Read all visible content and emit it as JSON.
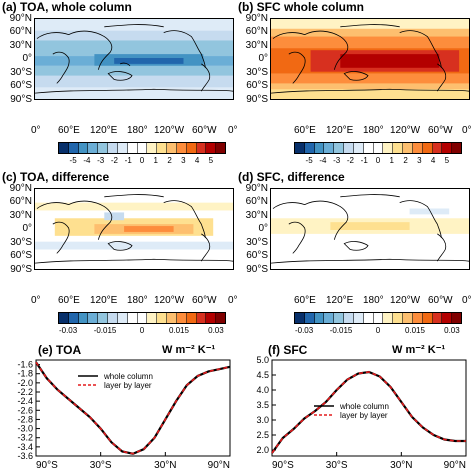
{
  "panels": {
    "a": {
      "title": "(a) TOA, whole column"
    },
    "b": {
      "title": "(b) SFC whole column"
    },
    "c": {
      "title": "(c) TOA, difference"
    },
    "d": {
      "title": "(d) SFC, difference"
    },
    "e": {
      "title": "(e) TOA"
    },
    "f": {
      "title": "(f) SFC"
    }
  },
  "map_axes": {
    "lat_labels": [
      "90°N",
      "60°N",
      "30°N",
      "0°",
      "30°S",
      "60°S",
      "90°S"
    ],
    "lon_labels": [
      "0°",
      "60°E",
      "120°E",
      "180°",
      "120°W",
      "60°W",
      "0°"
    ]
  },
  "colorbar_top": {
    "ticks": [
      "-5",
      "-4",
      "-3",
      "-2",
      "-1",
      "0",
      "1",
      "2",
      "3",
      "4",
      "5"
    ],
    "colors": [
      "#08306b",
      "#2166ac",
      "#4393c3",
      "#6baed6",
      "#92c5de",
      "#c6dbef",
      "#deebf7",
      "#ffffff",
      "#ffffff",
      "#fff3c4",
      "#fee090",
      "#fdbf6f",
      "#fd8d3c",
      "#f16913",
      "#d7301f",
      "#b30000",
      "#800000"
    ]
  },
  "colorbar_bottom": {
    "ticks": [
      "-0.03",
      "-0.015",
      "0",
      "0.015",
      "0.03"
    ],
    "colors": [
      "#08306b",
      "#2166ac",
      "#4393c3",
      "#6baed6",
      "#92c5de",
      "#c6dbef",
      "#deebf7",
      "#ffffff",
      "#ffffff",
      "#fff3c4",
      "#fee090",
      "#fdbf6f",
      "#fd8d3c",
      "#f16913",
      "#d7301f",
      "#b30000",
      "#800000"
    ]
  },
  "units": "W m⁻² K⁻¹",
  "line_x_labels": [
    "90°S",
    "30°S",
    "30°N",
    "90°N"
  ],
  "chart_data": [
    {
      "type": "line",
      "title": "(e) TOA",
      "x": [
        -90,
        -80,
        -70,
        -60,
        -50,
        -40,
        -30,
        -20,
        -10,
        0,
        10,
        20,
        30,
        40,
        50,
        60,
        70,
        80,
        90
      ],
      "xlim": [
        -90,
        90
      ],
      "ylim": [
        -3.6,
        -1.5
      ],
      "yticks": [
        "-1.6",
        "-1.8",
        "-2.0",
        "-2.2",
        "-2.4",
        "-2.6",
        "-2.8",
        "-3.0",
        "-3.2",
        "-3.4",
        "-3.6"
      ],
      "ytick_values": [
        -1.6,
        -1.8,
        -2.0,
        -2.2,
        -2.4,
        -2.6,
        -2.8,
        -3.0,
        -3.2,
        -3.4,
        -3.6
      ],
      "legend_position": "upper-center",
      "series": [
        {
          "name": "whole column",
          "color": "#000000",
          "dash": false,
          "values": [
            -1.55,
            -1.9,
            -2.15,
            -2.35,
            -2.55,
            -2.75,
            -3.0,
            -3.3,
            -3.5,
            -3.55,
            -3.45,
            -3.2,
            -2.8,
            -2.4,
            -2.05,
            -1.85,
            -1.75,
            -1.7,
            -1.65
          ]
        },
        {
          "name": "layer by layer",
          "color": "#e41a1c",
          "dash": true,
          "values": [
            -1.55,
            -1.9,
            -2.15,
            -2.35,
            -2.55,
            -2.75,
            -3.0,
            -3.3,
            -3.5,
            -3.55,
            -3.45,
            -3.2,
            -2.8,
            -2.4,
            -2.05,
            -1.85,
            -1.75,
            -1.7,
            -1.65
          ]
        }
      ]
    },
    {
      "type": "line",
      "title": "(f) SFC",
      "x": [
        -90,
        -80,
        -70,
        -60,
        -50,
        -40,
        -30,
        -20,
        -10,
        0,
        10,
        20,
        30,
        40,
        50,
        60,
        70,
        80,
        90
      ],
      "xlim": [
        -90,
        90
      ],
      "ylim": [
        1.8,
        5.0
      ],
      "yticks": [
        "5.0",
        "4.5",
        "4.0",
        "3.5",
        "3.0",
        "2.5",
        "2.0"
      ],
      "ytick_values": [
        5.0,
        4.5,
        4.0,
        3.5,
        3.0,
        2.5,
        2.0
      ],
      "legend_position": "center",
      "series": [
        {
          "name": "whole column",
          "color": "#000000",
          "dash": false,
          "values": [
            1.9,
            2.4,
            2.7,
            3.05,
            3.3,
            3.6,
            4.0,
            4.35,
            4.55,
            4.6,
            4.45,
            4.1,
            3.6,
            3.1,
            2.75,
            2.5,
            2.35,
            2.3,
            2.3
          ]
        },
        {
          "name": "layer by layer",
          "color": "#e41a1c",
          "dash": true,
          "values": [
            1.9,
            2.4,
            2.7,
            3.05,
            3.3,
            3.6,
            4.0,
            4.35,
            4.55,
            4.6,
            4.45,
            4.1,
            3.6,
            3.1,
            2.75,
            2.5,
            2.35,
            2.3,
            2.3
          ]
        }
      ]
    }
  ]
}
